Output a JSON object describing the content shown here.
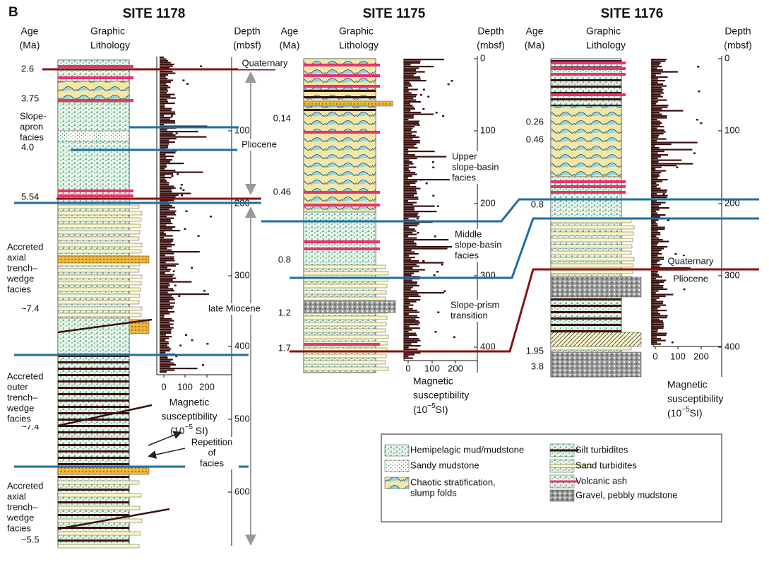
{
  "panel_label": "B",
  "sites": [
    {
      "title": "SITE 1178",
      "age_header": [
        "Age",
        "(Ma)"
      ],
      "lithology_header": [
        "Graphic",
        "Lithology"
      ],
      "depth_header": [
        "Depth",
        "(mbsf)"
      ],
      "ages": [
        "2.6",
        "3.75",
        "4.0",
        "5.54",
        "~7.4",
        "~7.4",
        "~5.5"
      ],
      "depth_ticks": [
        "100",
        "200",
        "300",
        "400",
        "500",
        "600"
      ],
      "susceptibility_ticks": [
        "0",
        "100",
        "200"
      ],
      "susceptibility_label": [
        "Magnetic",
        "susceptibility"
      ],
      "susceptibility_unit": {
        "base": "(10",
        "exponent": "−5",
        "rest": " SI)"
      }
    },
    {
      "title": "SITE 1175",
      "age_header": [
        "Age",
        "(Ma)"
      ],
      "lithology_header": [
        "Graphic",
        "Lithology"
      ],
      "depth_header": [
        "Depth",
        "(mbsf)"
      ],
      "ages": [
        "0.14",
        "0.46",
        "0.8",
        "1.2",
        "1.7"
      ],
      "depth_ticks": [
        "0",
        "100",
        "200",
        "300",
        "400"
      ],
      "susceptibility_ticks": [
        "0",
        "100",
        "200"
      ],
      "susceptibility_label": [
        "Magnetic",
        "susceptibility"
      ],
      "susceptibility_unit": {
        "base": "(10",
        "exponent": "−5",
        "rest": "SI)"
      }
    },
    {
      "title": "SITE 1176",
      "age_header": [
        "Age",
        "(Ma)"
      ],
      "lithology_header": [
        "Graphic",
        "Lithology"
      ],
      "depth_header": [
        "Depth",
        "(mbsf)"
      ],
      "ages": [
        "0.26",
        "0.46",
        "0.8",
        "1.95",
        "3.8"
      ],
      "depth_ticks": [
        "0",
        "100",
        "200",
        "300",
        "400"
      ],
      "susceptibility_ticks": [
        "0",
        "100",
        "200"
      ],
      "susceptibility_label": [
        "Magnetic",
        "susceptibility"
      ],
      "susceptibility_unit": {
        "base": "(10",
        "exponent": "−5",
        "rest": "SI)"
      }
    }
  ],
  "annotations": [
    {
      "lines": [
        "Quaternary"
      ]
    },
    {
      "lines": [
        "Pliocene"
      ]
    },
    {
      "lines": [
        "late Miocene"
      ]
    },
    {
      "lines": [
        "Slope-",
        "apron",
        "facies"
      ]
    },
    {
      "lines": [
        "Accreted",
        "axial",
        "trench–",
        "wedge",
        "facies"
      ]
    },
    {
      "lines": [
        "Accreted",
        "outer",
        "trench–",
        "wedge",
        "facies"
      ]
    },
    {
      "lines": [
        "Accreted",
        "axial",
        "trench–",
        "wedge",
        "facies"
      ]
    },
    {
      "lines": [
        "Repetition",
        "of",
        "facies"
      ]
    },
    {
      "lines": [
        "Upper",
        "slope-basin",
        "facies"
      ]
    },
    {
      "lines": [
        "Middle",
        "slope-basin",
        "facies"
      ]
    },
    {
      "lines": [
        "Slope-prism",
        "transition"
      ]
    },
    {
      "lines": [
        "Quaternary"
      ]
    },
    {
      "lines": [
        "Pliocene"
      ]
    }
  ],
  "legend": {
    "items": [
      {
        "kind": "hemipelagic",
        "lines": [
          "Hemipelagic mud/mudstone"
        ]
      },
      {
        "kind": "sandy",
        "lines": [
          "Sandy mudstone"
        ]
      },
      {
        "kind": "chaotic",
        "lines": [
          "Chaotic stratification,",
          "slump folds"
        ]
      },
      {
        "kind": "silt",
        "lines": [
          "Silt turbidites"
        ]
      },
      {
        "kind": "sand",
        "lines": [
          "Sand turbidites"
        ]
      },
      {
        "kind": "ash",
        "lines": [
          "Volcanic ash"
        ]
      },
      {
        "kind": "gravel",
        "lines": [
          "Gravel, pebbly mudstone"
        ]
      }
    ]
  }
}
